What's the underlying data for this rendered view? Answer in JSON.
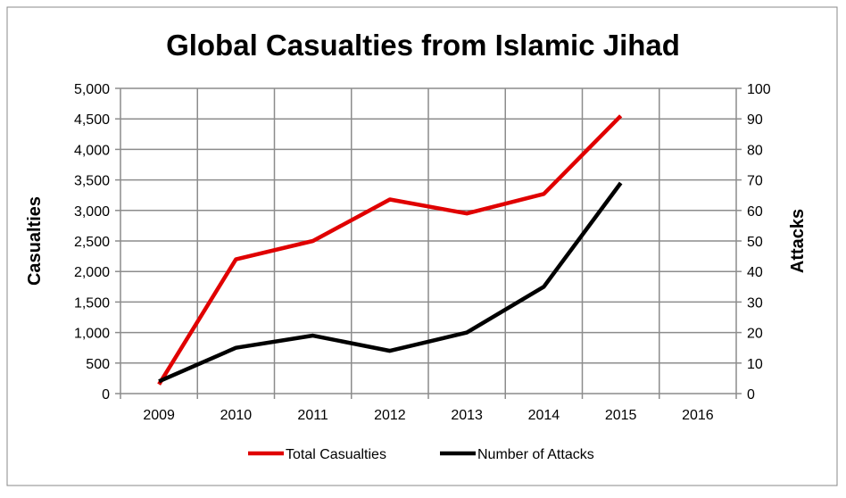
{
  "chart_data": {
    "type": "line",
    "title": "Global Casualties from Islamic Jihad",
    "categories": [
      "2009",
      "2010",
      "2011",
      "2012",
      "2013",
      "2014",
      "2015",
      "2016"
    ],
    "ylabel": "Casualties",
    "y2label": "Attacks",
    "ylim": [
      0,
      5000
    ],
    "y2lim": [
      0,
      100
    ],
    "yticks": [
      "0",
      "500",
      "1,000",
      "1,500",
      "2,000",
      "2,500",
      "3,000",
      "3,500",
      "4,000",
      "4,500",
      "5,000"
    ],
    "y2ticks": [
      "0",
      "10",
      "20",
      "30",
      "40",
      "50",
      "60",
      "70",
      "80",
      "90",
      "100"
    ],
    "grid": true,
    "legend": "bottom",
    "series": [
      {
        "name": "Total Casualties",
        "axis": "left",
        "color": "#e00000",
        "values": [
          150,
          2200,
          2500,
          3180,
          2950,
          3270,
          4550,
          null
        ]
      },
      {
        "name": "Number of Attacks",
        "axis": "right",
        "color": "#000000",
        "values": [
          4,
          15,
          19,
          14,
          20,
          35,
          69,
          null
        ]
      }
    ]
  }
}
